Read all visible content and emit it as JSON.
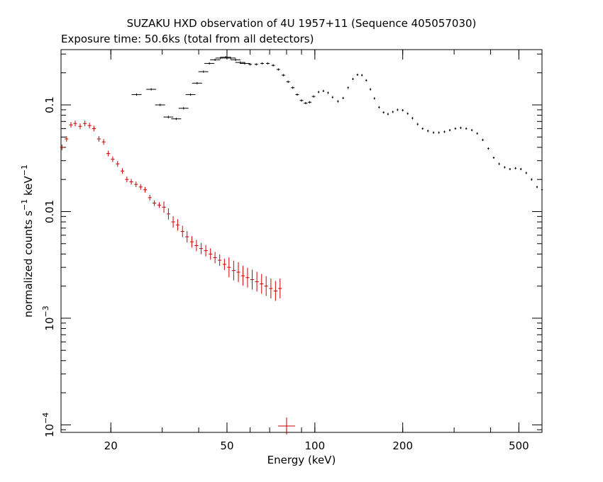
{
  "chart_data": {
    "type": "scatter",
    "title": "SUZAKU HXD observation of 4U 1957+11 (Sequence 405057030)",
    "subtitle": "Exposure time: 50.6ks (total from all detectors)",
    "xlabel": "Energy (keV)",
    "ylabel": {
      "prefix": "normalized counts s",
      "exp1": "−1",
      "mid": " keV",
      "exp2": "−1"
    },
    "xscale": "log",
    "yscale": "log",
    "xlim": [
      13.5,
      600
    ],
    "ylim": [
      8.5e-05,
      0.33
    ],
    "x_ticks": [
      {
        "value": 20,
        "label": "20"
      },
      {
        "value": 50,
        "label": "50"
      },
      {
        "value": 100,
        "label": "100"
      },
      {
        "value": 200,
        "label": "200"
      },
      {
        "value": 500,
        "label": "500"
      }
    ],
    "y_ticks": [
      {
        "value": 0.1,
        "label": "0.1"
      },
      {
        "value": 0.01,
        "label": "0.01"
      },
      {
        "value": 0.001,
        "base": "10",
        "exp": "−3"
      },
      {
        "value": 0.0001,
        "base": "10",
        "exp": "−4"
      }
    ],
    "grid": false,
    "legend": "none",
    "series": [
      {
        "color": "#000000",
        "points": [
          [
            24.5,
            0.125
          ],
          [
            27.5,
            0.14
          ],
          [
            29.5,
            0.1
          ],
          [
            31.5,
            0.077
          ],
          [
            33.5,
            0.074
          ],
          [
            35.5,
            0.093
          ],
          [
            37.5,
            0.125
          ],
          [
            39.5,
            0.16
          ],
          [
            41.5,
            0.205
          ],
          [
            43.5,
            0.245
          ],
          [
            45.5,
            0.265
          ],
          [
            47.5,
            0.275
          ],
          [
            49.5,
            0.28
          ],
          [
            51.5,
            0.275
          ],
          [
            53.5,
            0.265
          ],
          [
            55.5,
            0.25
          ],
          [
            57.5,
            0.245
          ],
          [
            60,
            0.24
          ],
          [
            63,
            0.24
          ],
          [
            66,
            0.245
          ],
          [
            69,
            0.245
          ],
          [
            72,
            0.235
          ],
          [
            75,
            0.215
          ],
          [
            78,
            0.19
          ],
          [
            81,
            0.165
          ],
          [
            84,
            0.145
          ],
          [
            87,
            0.125
          ],
          [
            90,
            0.11
          ],
          [
            93,
            0.104
          ],
          [
            96,
            0.106
          ],
          [
            99,
            0.12
          ],
          [
            103,
            0.132
          ],
          [
            107,
            0.135
          ],
          [
            111,
            0.13
          ],
          [
            115,
            0.118
          ],
          [
            120,
            0.108
          ],
          [
            125,
            0.116
          ],
          [
            130,
            0.145
          ],
          [
            135,
            0.175
          ],
          [
            140,
            0.192
          ],
          [
            145,
            0.19
          ],
          [
            150,
            0.17
          ],
          [
            155,
            0.14
          ],
          [
            160,
            0.115
          ],
          [
            166,
            0.095
          ],
          [
            172,
            0.085
          ],
          [
            178,
            0.082
          ],
          [
            185,
            0.086
          ],
          [
            192,
            0.09
          ],
          [
            200,
            0.089
          ],
          [
            208,
            0.083
          ],
          [
            216,
            0.075
          ],
          [
            225,
            0.066
          ],
          [
            234,
            0.06
          ],
          [
            244,
            0.057
          ],
          [
            255,
            0.055
          ],
          [
            266,
            0.055
          ],
          [
            278,
            0.056
          ],
          [
            290,
            0.058
          ],
          [
            303,
            0.06
          ],
          [
            316,
            0.061
          ],
          [
            330,
            0.06
          ],
          [
            345,
            0.058
          ],
          [
            360,
            0.054
          ],
          [
            376,
            0.047
          ],
          [
            393,
            0.039
          ],
          [
            410,
            0.032
          ],
          [
            428,
            0.028
          ],
          [
            447,
            0.026
          ],
          [
            466,
            0.025
          ],
          [
            487,
            0.0255
          ],
          [
            508,
            0.025
          ],
          [
            530,
            0.023
          ],
          [
            553,
            0.02
          ],
          [
            577,
            0.017
          ],
          [
            600,
            0.016
          ]
        ]
      },
      {
        "color": "#cc0000",
        "points": [
          [
            13.6,
            0.04
          ],
          [
            14.1,
            0.048
          ],
          [
            14.6,
            0.065
          ],
          [
            15.1,
            0.067
          ],
          [
            15.7,
            0.063
          ],
          [
            16.3,
            0.067
          ],
          [
            16.9,
            0.064
          ],
          [
            17.5,
            0.06
          ],
          [
            18.2,
            0.048
          ],
          [
            18.9,
            0.045
          ],
          [
            19.6,
            0.035
          ],
          [
            20.3,
            0.031
          ],
          [
            21.1,
            0.028
          ],
          [
            21.9,
            0.024
          ],
          [
            22.7,
            0.02
          ],
          [
            23.5,
            0.019
          ],
          [
            24.4,
            0.018
          ],
          [
            25.3,
            0.017
          ],
          [
            26.2,
            0.016
          ],
          [
            27.2,
            0.0135
          ],
          [
            28.2,
            0.012
          ],
          [
            29.3,
            0.0115
          ],
          [
            30.4,
            0.011
          ],
          [
            31.5,
            0.0095
          ],
          [
            32.7,
            0.008
          ],
          [
            33.9,
            0.0075
          ],
          [
            35.2,
            0.0065
          ],
          [
            36.5,
            0.0058
          ],
          [
            37.9,
            0.0052
          ],
          [
            39.3,
            0.0048
          ],
          [
            40.8,
            0.0045
          ],
          [
            42.3,
            0.0043
          ],
          [
            43.9,
            0.004
          ],
          [
            45.5,
            0.0037
          ],
          [
            47.2,
            0.0035
          ],
          [
            49,
            0.0032
          ],
          [
            50.8,
            0.003
          ],
          [
            52.7,
            0.0028
          ],
          [
            54.7,
            0.0027
          ],
          [
            56.7,
            0.0025
          ],
          [
            58.8,
            0.0024
          ],
          [
            61,
            0.0023
          ],
          [
            63.3,
            0.0022
          ],
          [
            65.7,
            0.0021
          ],
          [
            68.1,
            0.002
          ],
          [
            70.7,
            0.0019
          ],
          [
            73.3,
            0.0018
          ],
          [
            76,
            0.0019
          ],
          [
            80,
            9.75e-05
          ]
        ]
      }
    ]
  }
}
